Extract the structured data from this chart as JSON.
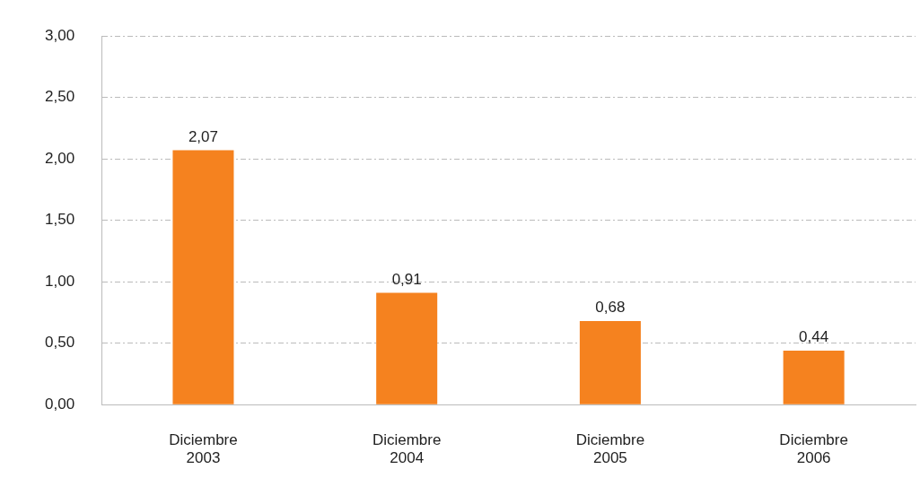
{
  "chart_data": {
    "type": "bar",
    "categories": [
      "Diciembre\n2003",
      "Diciembre\n2004",
      "Diciembre\n2005",
      "Diciembre\n2006"
    ],
    "values": [
      2.07,
      0.91,
      0.68,
      0.44
    ],
    "value_labels": [
      "2,07",
      "0,91",
      "0,68",
      "0,44"
    ],
    "color": "#f5821f",
    "ylim": [
      0,
      3
    ],
    "yticks": [
      {
        "value": 0,
        "label": "0,00"
      },
      {
        "value": 0.5,
        "label": "0,50"
      },
      {
        "value": 1,
        "label": "1,00"
      },
      {
        "value": 1.5,
        "label": "1,50"
      },
      {
        "value": 2,
        "label": "2,00"
      },
      {
        "value": 2.5,
        "label": "2,50"
      },
      {
        "value": 3,
        "label": "3,00"
      }
    ],
    "grid": "y"
  }
}
